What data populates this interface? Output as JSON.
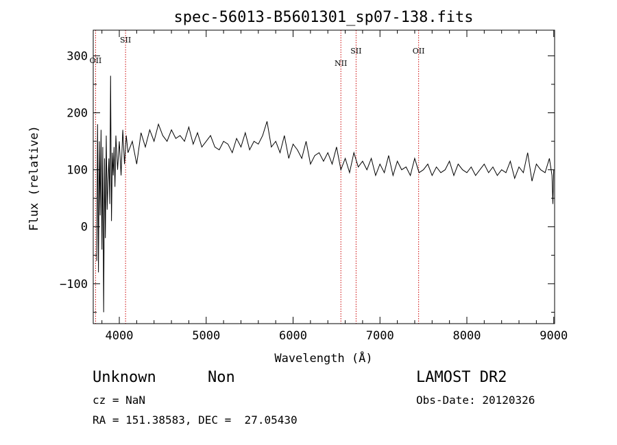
{
  "chart_data": {
    "type": "line",
    "title": "spec-56013-B5601301_sp07-138.fits",
    "xlabel": "Wavelength (Å)",
    "ylabel": "Flux (relative)",
    "xlim": [
      3700,
      9010
    ],
    "ylim": [
      -170,
      345
    ],
    "xticks": [
      4000,
      5000,
      6000,
      7000,
      8000,
      9000
    ],
    "yticks": [
      -100,
      0,
      100,
      200,
      300
    ],
    "grid": false,
    "series": [
      {
        "color": "#000000",
        "x": [
          3740,
          3750,
          3760,
          3770,
          3780,
          3790,
          3800,
          3810,
          3820,
          3830,
          3840,
          3850,
          3860,
          3870,
          3880,
          3890,
          3900,
          3910,
          3920,
          3930,
          3940,
          3950,
          3960,
          3980,
          4000,
          4020,
          4040,
          4060,
          4080,
          4100,
          4150,
          4200,
          4250,
          4300,
          4350,
          4400,
          4450,
          4500,
          4550,
          4600,
          4650,
          4700,
          4750,
          4800,
          4850,
          4900,
          4950,
          5000,
          5050,
          5100,
          5150,
          5200,
          5250,
          5300,
          5350,
          5400,
          5450,
          5500,
          5550,
          5600,
          5650,
          5700,
          5750,
          5800,
          5850,
          5900,
          5950,
          6000,
          6050,
          6100,
          6150,
          6200,
          6250,
          6300,
          6350,
          6400,
          6450,
          6500,
          6550,
          6600,
          6650,
          6700,
          6750,
          6800,
          6850,
          6900,
          6950,
          7000,
          7050,
          7100,
          7150,
          7200,
          7250,
          7300,
          7350,
          7400,
          7450,
          7500,
          7550,
          7600,
          7650,
          7700,
          7750,
          7800,
          7850,
          7900,
          7950,
          8000,
          8050,
          8100,
          8150,
          8200,
          8250,
          8300,
          8350,
          8400,
          8450,
          8500,
          8550,
          8600,
          8650,
          8700,
          8750,
          8800,
          8850,
          8900,
          8950,
          8980,
          8990,
          9000
        ],
        "y": [
          -60,
          180,
          -80,
          150,
          20,
          170,
          -40,
          140,
          -150,
          120,
          -20,
          160,
          30,
          80,
          120,
          40,
          265,
          10,
          130,
          90,
          140,
          70,
          160,
          100,
          150,
          90,
          170,
          110,
          160,
          130,
          150,
          110,
          165,
          140,
          170,
          150,
          180,
          160,
          150,
          170,
          155,
          160,
          150,
          175,
          145,
          165,
          140,
          150,
          160,
          140,
          135,
          150,
          145,
          130,
          155,
          140,
          165,
          135,
          150,
          145,
          160,
          185,
          140,
          150,
          130,
          160,
          120,
          145,
          135,
          120,
          150,
          110,
          125,
          130,
          115,
          130,
          110,
          140,
          100,
          120,
          95,
          130,
          105,
          115,
          100,
          120,
          90,
          110,
          95,
          125,
          90,
          115,
          100,
          105,
          90,
          120,
          95,
          100,
          110,
          90,
          105,
          95,
          100,
          115,
          90,
          110,
          100,
          95,
          105,
          90,
          100,
          110,
          95,
          105,
          90,
          100,
          95,
          115,
          85,
          105,
          95,
          130,
          80,
          110,
          100,
          95,
          120,
          90,
          40,
          100
        ]
      }
    ],
    "lines": [
      {
        "label": "OII",
        "x": 3727,
        "color": "#cc0000"
      },
      {
        "label": "SII",
        "x": 4072,
        "color": "#cc0000"
      },
      {
        "label": "NII",
        "x": 6550,
        "color": "#cc0000"
      },
      {
        "label": "SII",
        "x": 6725,
        "color": "#cc0000"
      },
      {
        "label": "OII",
        "x": 7445,
        "color": "#cc0000"
      }
    ]
  },
  "info": {
    "class": "Unknown",
    "subclass": "Non",
    "survey": "LAMOST DR2",
    "cz": "cz = NaN",
    "obsdate": "Obs-Date: 20120326",
    "coords": "RA = 151.38583, DEC =  27.05430"
  }
}
